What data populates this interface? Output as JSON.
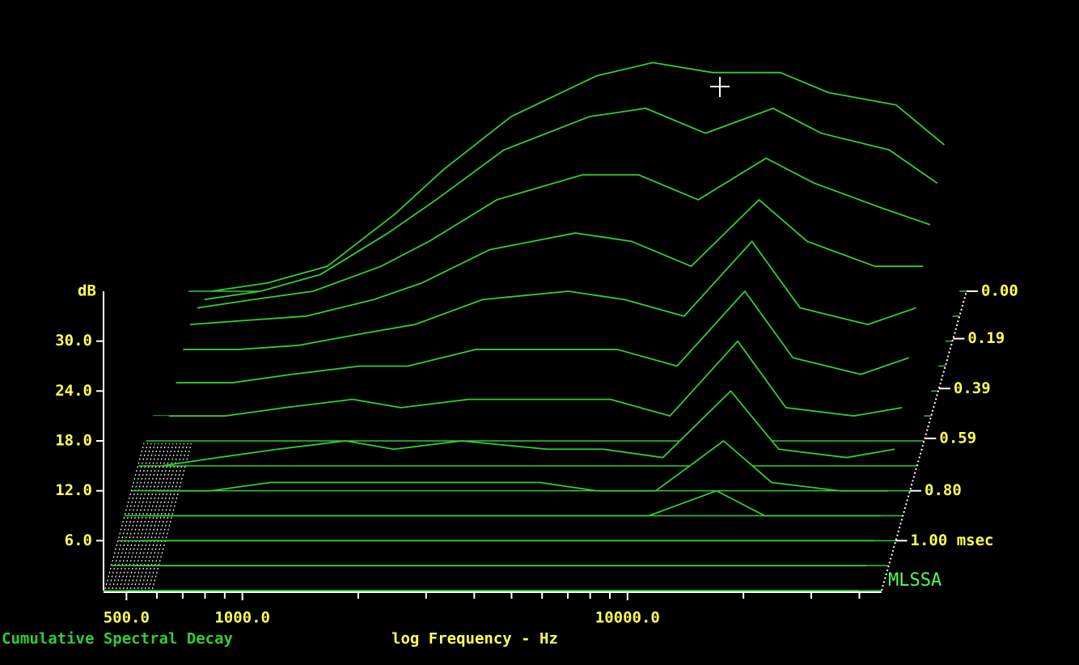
{
  "chart_data": {
    "type": "waterfall",
    "title": "Cumulative Spectral Decay",
    "xlabel": "log Frequency - Hz",
    "ylabel": "dB",
    "brand": "MLSSA",
    "xscale": "log",
    "color": "#33cc33",
    "xlim": [
      436,
      45700
    ],
    "xticks": [
      {
        "value": 500,
        "label": "500.0"
      },
      {
        "value": 1000,
        "label": "1000.0"
      },
      {
        "value": 10000,
        "label": "10000.0"
      }
    ],
    "xminorticks": [
      600,
      700,
      800,
      900,
      2000,
      3000,
      4000,
      5000,
      6000,
      7000,
      8000,
      9000,
      20000,
      30000,
      40000
    ],
    "ylim": [
      0,
      36
    ],
    "yticks": [
      {
        "value": 6,
        "label": "6.0"
      },
      {
        "value": 12,
        "label": "12.0"
      },
      {
        "value": 18,
        "label": "18.0"
      },
      {
        "value": 24,
        "label": "24.0"
      },
      {
        "value": 30,
        "label": "30.0"
      }
    ],
    "zlim": [
      0,
      1.2
    ],
    "zticks": [
      {
        "value": 0,
        "label": "0.00"
      },
      {
        "value": 0.19,
        "label": "0.19"
      },
      {
        "value": 0.39,
        "label": "0.39"
      },
      {
        "value": 0.59,
        "label": "0.59"
      },
      {
        "value": 0.8,
        "label": "0.80"
      },
      {
        "value": 1.0,
        "label": "1.00 msec"
      }
    ],
    "x": [
      500,
      700,
      1000,
      1500,
      2000,
      3000,
      5000,
      7000,
      10000,
      15000,
      20000,
      30000,
      40000
    ],
    "slices": [
      {
        "time": 0.0,
        "values": [
          0,
          1,
          3,
          9.3,
          14.6,
          21,
          25.9,
          27.5,
          26.3,
          26.3,
          23.9,
          22.4,
          17.6
        ]
      },
      {
        "time": 0.1,
        "values": [
          2,
          3,
          5,
          10,
          14,
          20,
          24,
          25,
          22,
          25,
          22,
          20,
          16
        ]
      },
      {
        "time": 0.2,
        "values": [
          4,
          5,
          6,
          9,
          12,
          17,
          20,
          20,
          17,
          22,
          19,
          16,
          14
        ]
      },
      {
        "time": 0.3,
        "values": [
          5,
          5.5,
          6,
          8,
          10,
          14,
          16,
          15,
          12,
          20,
          15,
          12,
          12
        ]
      },
      {
        "time": 0.4,
        "values": [
          5,
          5,
          5.5,
          7,
          8,
          11,
          12,
          11,
          9,
          18,
          10,
          8,
          10
        ]
      },
      {
        "time": 0.5,
        "values": [
          4,
          4,
          5,
          6,
          6,
          8,
          8,
          8,
          6,
          15,
          7,
          5,
          7
        ]
      },
      {
        "time": 0.6,
        "values": [
          3,
          3,
          4,
          5,
          4,
          5,
          5,
          5,
          3,
          12,
          4,
          3,
          4
        ]
      },
      {
        "time": 0.7,
        "values": [
          0,
          1,
          2,
          3,
          2,
          3,
          2,
          2,
          1,
          9,
          2,
          1,
          2
        ]
      },
      {
        "time": 0.8,
        "values": [
          0,
          0,
          1,
          1,
          1,
          1,
          1,
          0,
          0,
          6,
          1,
          0,
          0
        ]
      },
      {
        "time": 0.9,
        "values": [
          0,
          0,
          0,
          0,
          0,
          0,
          0,
          0,
          0,
          3,
          0,
          0,
          0
        ]
      },
      {
        "time": 1.0,
        "values": [
          0,
          0,
          0,
          0,
          0,
          0,
          0,
          0,
          0,
          0,
          0,
          0,
          0
        ]
      },
      {
        "time": 1.1,
        "values": [
          0,
          0,
          0,
          0,
          0,
          0,
          0,
          0,
          0,
          0,
          0,
          0,
          0
        ]
      },
      {
        "time": 1.2,
        "values": [
          0,
          0,
          0,
          0,
          0,
          0,
          0,
          0,
          0,
          0,
          0,
          0,
          0
        ]
      }
    ]
  }
}
